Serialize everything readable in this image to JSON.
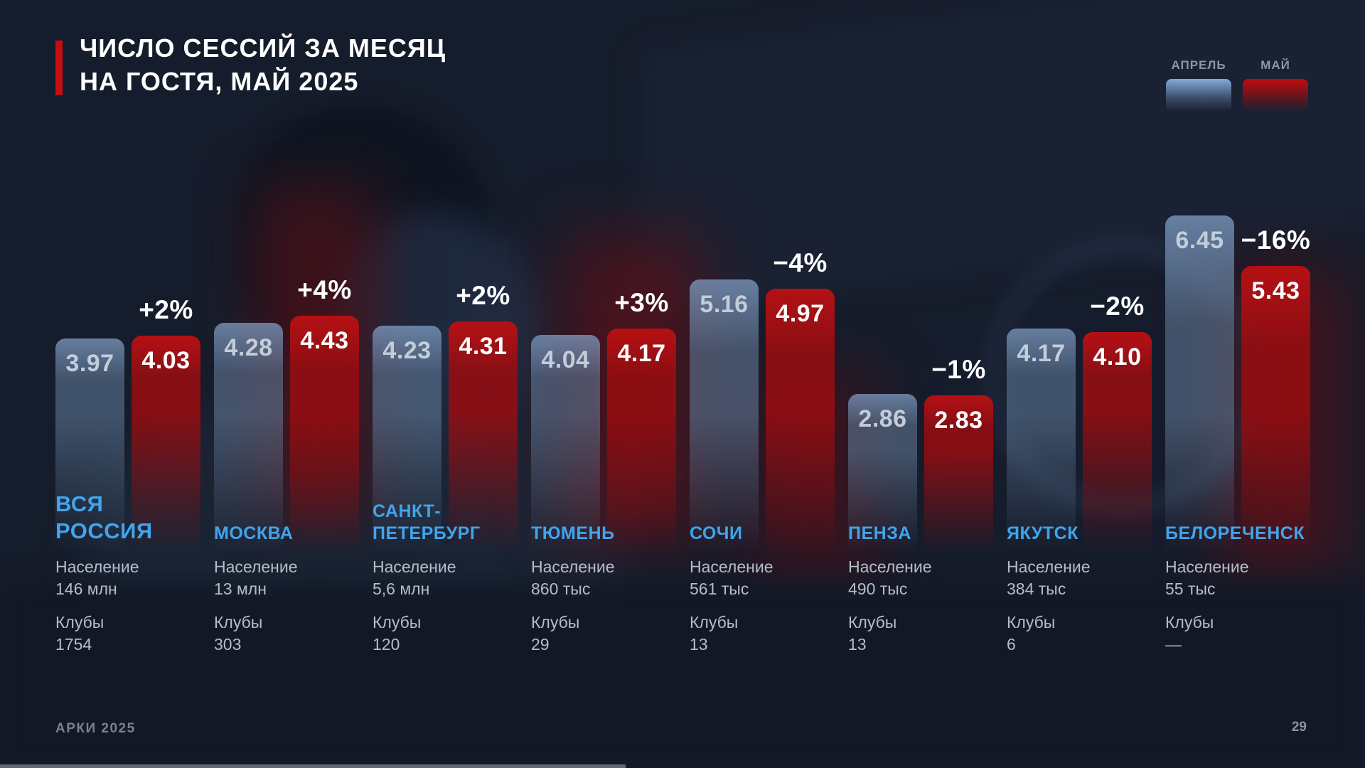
{
  "title": "ЧИСЛО СЕССИЙ ЗА МЕСЯЦ\nНА ГОСТЯ, МАЙ 2025",
  "legend": {
    "april_label": "АПРЕЛЬ",
    "may_label": "МАЙ"
  },
  "labels": {
    "population": "Население",
    "clubs": "Клубы"
  },
  "colors": {
    "accent_red": "#c60d10",
    "april_bar_top": "#85a3cb",
    "april_bar_mid": "#64809F",
    "may_bar_top": "#bb1013",
    "may_bar_mid": "#950d11",
    "city_name_blue": "#41a4ec",
    "april_value_text": "#c3cdda",
    "may_value_text": "#ffffff"
  },
  "footer": {
    "brand": "АРКИ 2025",
    "page": "29"
  },
  "chart_data": {
    "type": "bar",
    "title": "ЧИСЛО СЕССИЙ ЗА МЕСЯЦ НА ГОСТЯ, МАЙ 2025",
    "series_names": [
      "АПРЕЛЬ",
      "МАЙ"
    ],
    "legend_position": "top-right",
    "value_axis_visible": false,
    "grid": false,
    "ylim": [
      0,
      7
    ],
    "groups": [
      {
        "city": "ВСЯ\nРОССИЯ",
        "april": 3.97,
        "may": 4.03,
        "change": "+2%",
        "population": "146 млн",
        "clubs": "1754"
      },
      {
        "city": "МОСКВА",
        "april": 4.28,
        "may": 4.43,
        "change": "+4%",
        "population": "13 млн",
        "clubs": "303"
      },
      {
        "city": "САНКТ-\nПЕТЕРБУРГ",
        "april": 4.23,
        "may": 4.31,
        "change": "+2%",
        "population": "5,6 млн",
        "clubs": "120"
      },
      {
        "city": "ТЮМЕНЬ",
        "april": 4.04,
        "may": 4.17,
        "change": "+3%",
        "population": "860 тыс",
        "clubs": "29"
      },
      {
        "city": "СОЧИ",
        "april": 5.16,
        "may": 4.97,
        "change": "−4%",
        "population": "561 тыс",
        "clubs": "13"
      },
      {
        "city": "ПЕНЗА",
        "april": 2.86,
        "may": 2.83,
        "change": "−1%",
        "population": "490 тыс",
        "clubs": "13"
      },
      {
        "city": "ЯКУТСК",
        "april": 4.17,
        "may": 4.1,
        "change": "−2%",
        "population": "384 тыс",
        "clubs": "6"
      },
      {
        "city": "БЕЛОРЕЧЕНСК",
        "april": 6.45,
        "may": 5.43,
        "change": "−16%",
        "population": "55 тыс",
        "clubs": "—"
      }
    ]
  }
}
